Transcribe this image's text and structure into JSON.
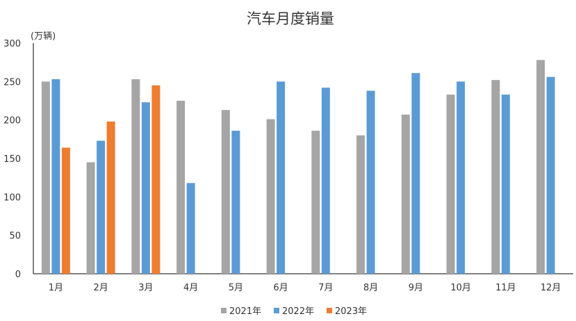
{
  "chart_data": {
    "type": "bar",
    "title": "汽车月度销量",
    "ylabel": "(万辆)",
    "xlabel": "",
    "ylim": [
      0,
      300
    ],
    "yticks": [
      0,
      50,
      100,
      150,
      200,
      250,
      300
    ],
    "grid": false,
    "legend_position": "bottom",
    "categories": [
      "1月",
      "2月",
      "3月",
      "4月",
      "5月",
      "6月",
      "7月",
      "8月",
      "9月",
      "10月",
      "11月",
      "12月"
    ],
    "series": [
      {
        "name": "2021年",
        "color": "#A5A5A5",
        "values": [
          250,
          145,
          253,
          225,
          213,
          201,
          186,
          180,
          207,
          233,
          252,
          278
        ]
      },
      {
        "name": "2022年",
        "color": "#5B9BD5",
        "values": [
          253,
          173,
          223,
          118,
          186,
          250,
          242,
          238,
          261,
          250,
          233,
          256
        ]
      },
      {
        "name": "2023年",
        "color": "#ED7D31",
        "values": [
          164,
          198,
          245,
          null,
          null,
          null,
          null,
          null,
          null,
          null,
          null,
          null
        ]
      }
    ]
  }
}
